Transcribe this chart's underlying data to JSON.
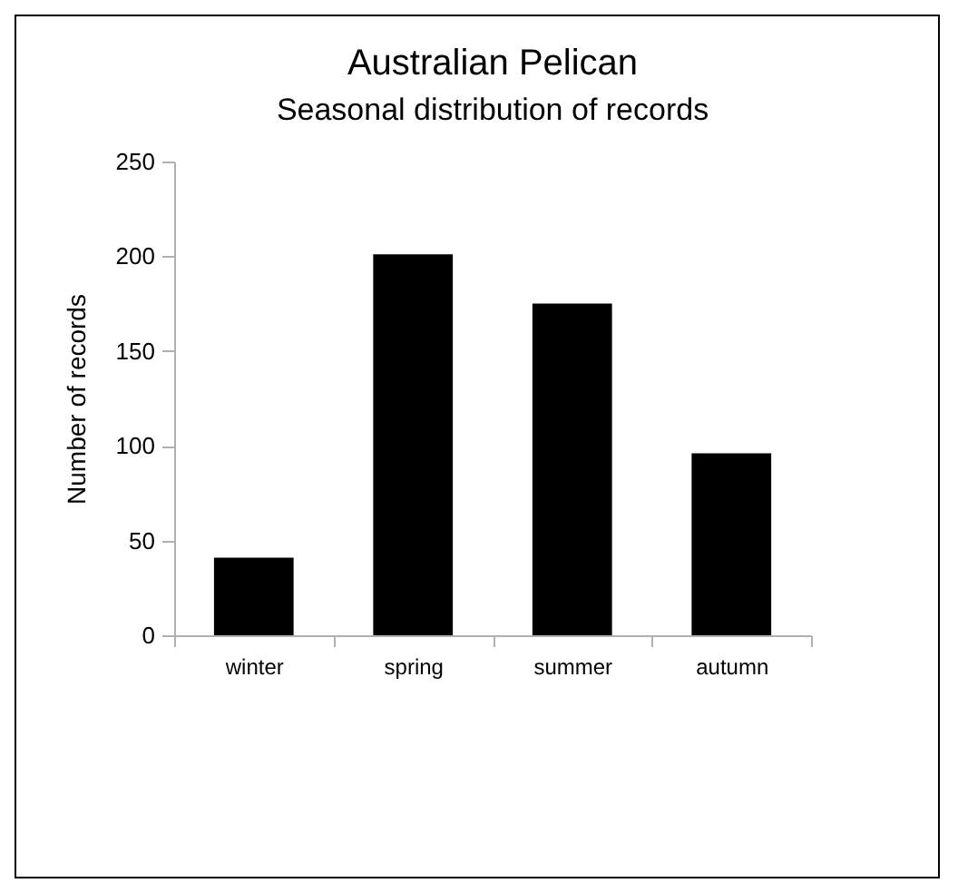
{
  "chart_data": {
    "type": "bar",
    "title": "Australian Pelican",
    "subtitle": "Seasonal distribution of records",
    "ylabel": "Number of records",
    "categories": [
      "winter",
      "spring",
      "summer",
      "autumn"
    ],
    "values": [
      41,
      201,
      175,
      96
    ],
    "color": "#000000",
    "ylim": [
      0,
      250
    ],
    "yticks": [
      0,
      50,
      100,
      150,
      200,
      250
    ],
    "grid": false
  }
}
